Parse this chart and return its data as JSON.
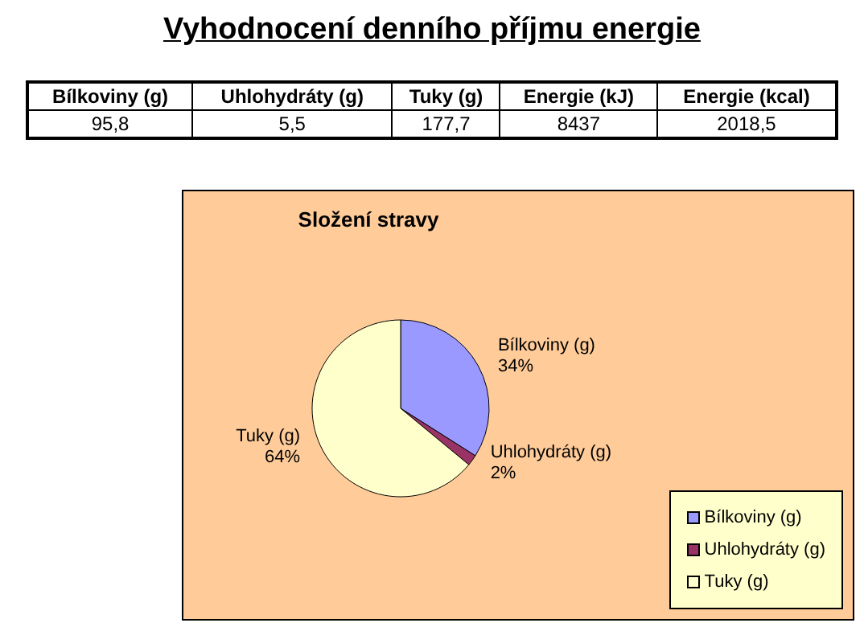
{
  "chart_data": [
    {
      "type": "other",
      "title": "Vyhodnocení denního příjmu energie",
      "categories": [
        "Bílkoviny (g)",
        "Uhlohydráty (g)",
        "Tuky (g)",
        "Energie (kJ)",
        "Energie (kcal)"
      ],
      "values": [
        95.8,
        5.5,
        177.7,
        8437,
        2018.5
      ],
      "value_labels": [
        "95,8",
        "5,5",
        "177,7",
        "8437",
        "2018,5"
      ]
    },
    {
      "type": "pie",
      "title": "Složení stravy",
      "categories": [
        "Bílkoviny (g)",
        "Uhlohydráty (g)",
        "Tuky (g)"
      ],
      "values": [
        34,
        2,
        64
      ],
      "value_labels": [
        "34%",
        "2%",
        "64%"
      ],
      "colors": [
        "#9999ff",
        "#993366",
        "#ffffcc"
      ],
      "legend": "bottom right"
    }
  ]
}
